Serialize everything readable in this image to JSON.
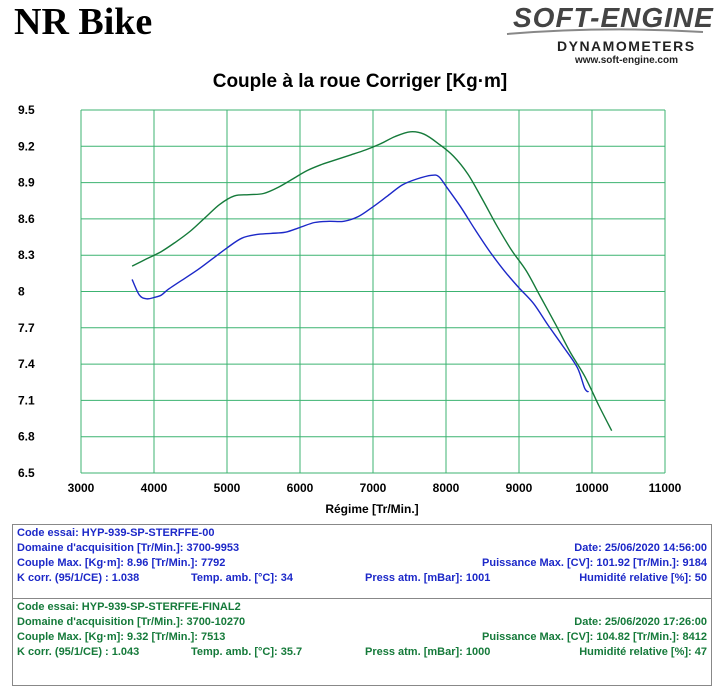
{
  "header": {
    "title": "NR Bike",
    "logo_main": "SOFT-ENGINE",
    "logo_sub": "DYNAMOMETERS",
    "logo_url": "www.soft-engine.com"
  },
  "colors": {
    "series1": "#1c28c8",
    "series2": "#157a3a",
    "grid": "#3cb371"
  },
  "chart_data": {
    "type": "line",
    "title": "Couple à la roue Corriger [Kg·m]",
    "xlabel": "Régime [Tr/Min.]",
    "ylabel": "",
    "xlim": [
      3000,
      11000
    ],
    "ylim": [
      6.5,
      9.5
    ],
    "xticks": [
      "3000",
      "4000",
      "5000",
      "6000",
      "7000",
      "8000",
      "9000",
      "10000",
      "11000"
    ],
    "yticks": [
      "6.5",
      "6.8",
      "7.1",
      "7.4",
      "7.7",
      "8",
      "8.3",
      "8.6",
      "8.9",
      "9.2",
      "9.5"
    ],
    "grid": true,
    "series": [
      {
        "color": "#1c28c8",
        "x": [
          3700,
          3800,
          3900,
          4000,
          4100,
          4200,
          4400,
          4600,
          4800,
          5000,
          5200,
          5400,
          5600,
          5800,
          6000,
          6200,
          6400,
          6600,
          6800,
          7000,
          7200,
          7400,
          7600,
          7800,
          7900,
          8000,
          8200,
          8400,
          8600,
          8800,
          9000,
          9200,
          9400,
          9600,
          9800,
          9900,
          9953
        ],
        "values": [
          8.1,
          7.97,
          7.94,
          7.95,
          7.97,
          8.02,
          8.1,
          8.18,
          8.27,
          8.36,
          8.44,
          8.47,
          8.48,
          8.49,
          8.53,
          8.57,
          8.58,
          8.58,
          8.62,
          8.7,
          8.79,
          8.88,
          8.93,
          8.96,
          8.95,
          8.87,
          8.7,
          8.51,
          8.33,
          8.17,
          8.03,
          7.9,
          7.72,
          7.55,
          7.37,
          7.2,
          7.17
        ]
      },
      {
        "color": "#157a3a",
        "x": [
          3700,
          3900,
          4100,
          4300,
          4500,
          4700,
          4900,
          5100,
          5300,
          5500,
          5700,
          5900,
          6100,
          6300,
          6500,
          6700,
          6900,
          7100,
          7300,
          7513,
          7700,
          7900,
          8100,
          8300,
          8500,
          8700,
          8900,
          9100,
          9300,
          9500,
          9700,
          9900,
          10100,
          10270
        ],
        "values": [
          8.21,
          8.27,
          8.33,
          8.41,
          8.5,
          8.61,
          8.72,
          8.79,
          8.8,
          8.81,
          8.86,
          8.93,
          9.0,
          9.05,
          9.09,
          9.13,
          9.17,
          9.22,
          9.28,
          9.32,
          9.3,
          9.22,
          9.12,
          8.97,
          8.76,
          8.54,
          8.34,
          8.17,
          7.95,
          7.73,
          7.5,
          7.3,
          7.05,
          6.85
        ]
      }
    ]
  },
  "run1": {
    "code": "Code essai: HYP-939-SP-STERFFE-00",
    "domain": "Domaine d'acquisition [Tr/Min.]: 3700-9953",
    "date": "Date: 25/06/2020   14:56:00",
    "couple_max": "Couple Max. [Kg·m]: 8.96   [Tr/Min.]: 7792",
    "puissance_max": "Puissance Max. [CV]: 101.92   [Tr/Min.]: 9184",
    "k_corr": "K corr. (95/1/CE) : 1.038",
    "temp": "Temp. amb. [°C]: 34",
    "press": "Press atm. [mBar]: 1001",
    "humid": "Humidité relative [%]: 50"
  },
  "run2": {
    "code": "Code essai: HYP-939-SP-STERFFE-FINAL2",
    "domain": "Domaine d'acquisition [Tr/Min.]: 3700-10270",
    "date": "Date: 25/06/2020   17:26:00",
    "couple_max": "Couple Max. [Kg·m]: 9.32   [Tr/Min.]: 7513",
    "puissance_max": "Puissance Max. [CV]: 104.82   [Tr/Min.]: 8412",
    "k_corr": "K corr. (95/1/CE) : 1.043",
    "temp": "Temp. amb. [°C]: 35.7",
    "press": "Press atm. [mBar]: 1000",
    "humid": "Humidité relative [%]: 47"
  }
}
